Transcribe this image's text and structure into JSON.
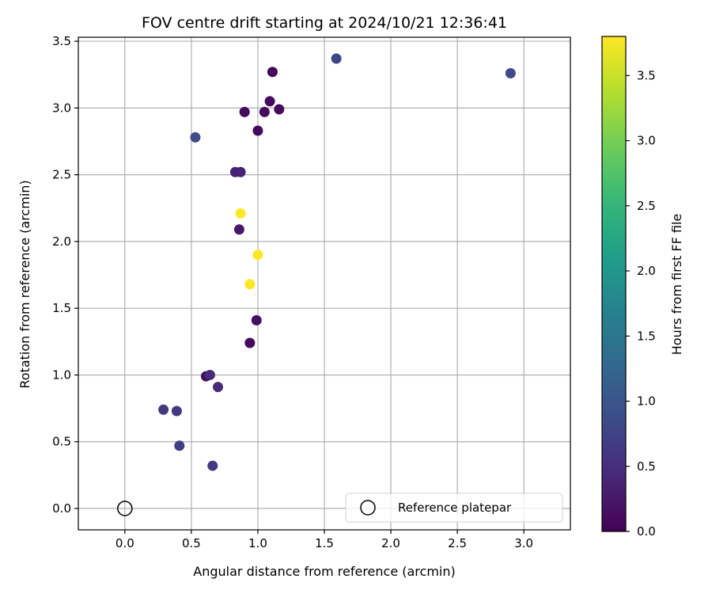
{
  "chart_data": {
    "type": "scatter",
    "title": "FOV centre drift starting at 2024/10/21 12:36:41",
    "xlabel": "Angular distance from reference (arcmin)",
    "ylabel": "Rotation from reference (arcmin)",
    "xlim": [
      -0.35,
      3.35
    ],
    "ylim": [
      -0.16,
      3.53
    ],
    "xticks": [
      0.0,
      0.5,
      1.0,
      1.5,
      2.0,
      2.5,
      3.0
    ],
    "xtick_labels": [
      "0.0",
      "0.5",
      "1.0",
      "1.5",
      "2.0",
      "2.5",
      "3.0"
    ],
    "yticks": [
      0.0,
      0.5,
      1.0,
      1.5,
      2.0,
      2.5,
      3.0,
      3.5
    ],
    "ytick_labels": [
      "0.0",
      "0.5",
      "1.0",
      "1.5",
      "2.0",
      "2.5",
      "3.0",
      "3.5"
    ],
    "grid": true,
    "colormap": "viridis",
    "colorbar": {
      "label": "Hours from first FF file",
      "range": [
        0.0,
        3.8
      ],
      "ticks": [
        0.0,
        0.5,
        1.0,
        1.5,
        2.0,
        2.5,
        3.0,
        3.5
      ],
      "tick_labels": [
        "0.0",
        "0.5",
        "1.0",
        "1.5",
        "2.0",
        "2.5",
        "3.0",
        "3.5"
      ]
    },
    "points": [
      {
        "x": 1.11,
        "y": 3.27,
        "c": 0.05
      },
      {
        "x": 1.09,
        "y": 3.05,
        "c": 0.1
      },
      {
        "x": 0.9,
        "y": 2.97,
        "c": 0.1
      },
      {
        "x": 1.05,
        "y": 2.97,
        "c": 0.1
      },
      {
        "x": 1.16,
        "y": 2.99,
        "c": 0.1
      },
      {
        "x": 1.0,
        "y": 2.83,
        "c": 0.1
      },
      {
        "x": 0.53,
        "y": 2.78,
        "c": 0.85
      },
      {
        "x": 1.59,
        "y": 3.37,
        "c": 0.8
      },
      {
        "x": 2.9,
        "y": 3.26,
        "c": 0.85
      },
      {
        "x": 0.83,
        "y": 2.52,
        "c": 0.35
      },
      {
        "x": 0.87,
        "y": 2.52,
        "c": 0.35
      },
      {
        "x": 0.87,
        "y": 2.21,
        "c": 3.8
      },
      {
        "x": 0.86,
        "y": 2.09,
        "c": 0.25
      },
      {
        "x": 1.0,
        "y": 1.9,
        "c": 3.8
      },
      {
        "x": 0.94,
        "y": 1.68,
        "c": 3.8
      },
      {
        "x": 0.99,
        "y": 1.41,
        "c": 0.15
      },
      {
        "x": 0.94,
        "y": 1.24,
        "c": 0.1
      },
      {
        "x": 0.61,
        "y": 0.99,
        "c": 0.15
      },
      {
        "x": 0.64,
        "y": 1.0,
        "c": 0.45
      },
      {
        "x": 0.7,
        "y": 0.91,
        "c": 0.45
      },
      {
        "x": 0.29,
        "y": 0.74,
        "c": 0.65
      },
      {
        "x": 0.39,
        "y": 0.73,
        "c": 0.65
      },
      {
        "x": 0.41,
        "y": 0.47,
        "c": 0.7
      },
      {
        "x": 0.66,
        "y": 0.32,
        "c": 0.65
      }
    ],
    "reference": {
      "x": 0.0,
      "y": 0.0
    },
    "legend": {
      "label": "Reference platepar",
      "placement": "lower-right"
    }
  }
}
